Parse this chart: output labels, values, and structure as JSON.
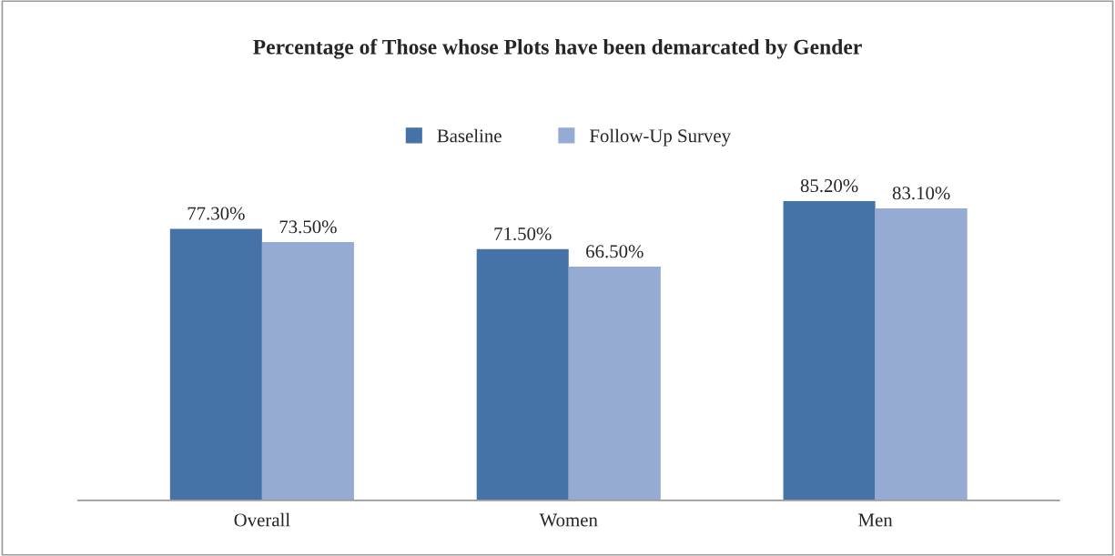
{
  "chart_data": {
    "type": "bar",
    "title": "Percentage of Those whose Plots have been demarcated by Gender",
    "categories": [
      "Overall",
      "Women",
      "Men"
    ],
    "series": [
      {
        "name": "Baseline",
        "color": "#4572a7",
        "values": [
          77.3,
          71.5,
          85.2
        ],
        "value_labels": [
          "77.30%",
          "71.50%",
          "85.20%"
        ]
      },
      {
        "name": "Follow-Up Survey",
        "color": "#95abd3",
        "values": [
          73.5,
          66.5,
          83.1
        ],
        "value_labels": [
          "73.50%",
          "66.50%",
          "83.10%"
        ]
      }
    ],
    "legend": "top",
    "grid": false
  }
}
